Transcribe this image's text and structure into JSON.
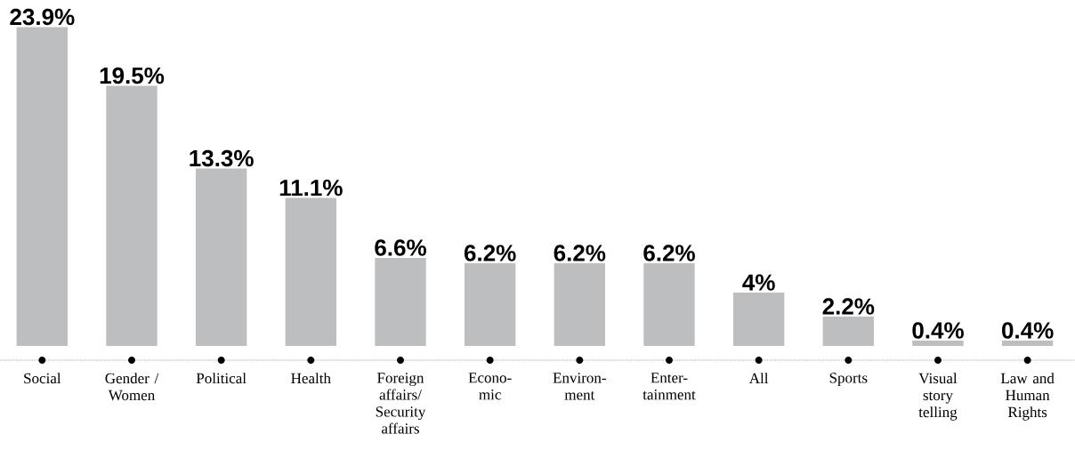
{
  "chart_data": {
    "type": "bar",
    "categories": [
      "Social",
      "Gender / Women",
      "Political",
      "Health",
      "Foreign affairs/ Security affairs",
      "Econo-mic",
      "Environ-ment",
      "Enter-tainment",
      "All",
      "Sports",
      "Visual story telling",
      "Law and Human Rights"
    ],
    "values": [
      23.9,
      19.5,
      13.3,
      11.1,
      6.6,
      6.2,
      6.2,
      6.2,
      4,
      2.2,
      0.4,
      0.4
    ],
    "value_labels": [
      "23.9%",
      "19.5%",
      "13.3%",
      "11.1%",
      "6.6%",
      "6.2%",
      "6.2%",
      "6.2%",
      "4%",
      "2.2%",
      "0.4%",
      "0.4%"
    ],
    "color": "#bcbec0"
  }
}
